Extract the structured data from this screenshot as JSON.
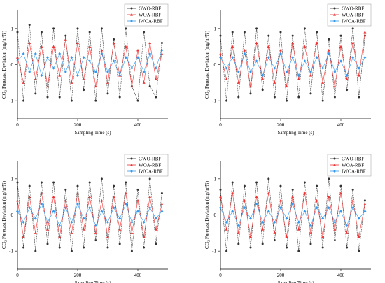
{
  "colors": {
    "GWO-RBF": "#333333",
    "WOA-RBF": "#ee3333",
    "IWOA-RBF": "#3399ee"
  },
  "chart_data": [
    {
      "type": "line",
      "xlabel": "Sampling Time (s)",
      "ylabel": "CO₂ Forecast Deviation (mg/m³N)",
      "xlim": [
        0,
        500
      ],
      "ylim": [
        -1.5,
        1.5
      ],
      "xticks": [
        0,
        200,
        400
      ],
      "yticks": [
        -1,
        0,
        1
      ],
      "legend_position": "top-right",
      "series": [
        {
          "name": "GWO-RBF",
          "x": [
            0,
            20,
            40,
            60,
            80,
            100,
            120,
            140,
            160,
            180,
            200,
            220,
            240,
            260,
            280,
            300,
            320,
            340,
            360,
            380,
            400,
            420,
            440,
            460,
            480
          ],
          "values": [
            0.9,
            -1.0,
            1.1,
            -0.8,
            0.9,
            -0.9,
            1.0,
            -0.9,
            0.8,
            -1.0,
            1.0,
            -0.7,
            0.9,
            -1.0,
            1.0,
            -0.8,
            0.7,
            -0.9,
            1.0,
            -0.6,
            -1.0,
            0.9,
            -0.6,
            -0.9,
            0.6
          ]
        },
        {
          "name": "WOA-RBF",
          "x": [
            0,
            20,
            40,
            60,
            80,
            100,
            120,
            140,
            160,
            180,
            200,
            220,
            240,
            260,
            280,
            300,
            320,
            340,
            360,
            380,
            400,
            420,
            440,
            460,
            480
          ],
          "values": [
            0.2,
            -0.5,
            0.6,
            -0.4,
            0.5,
            -0.6,
            0.5,
            -0.3,
            0.7,
            -0.5,
            0.6,
            -0.4,
            0.5,
            -0.6,
            0.4,
            -0.5,
            0.6,
            -0.3,
            0.5,
            -0.6,
            0.4,
            -0.5,
            0.6,
            -0.4,
            0.3
          ]
        },
        {
          "name": "IWOA-RBF",
          "x": [
            0,
            20,
            40,
            60,
            80,
            100,
            120,
            140,
            160,
            180,
            200,
            220,
            240,
            260,
            280,
            300,
            320,
            340,
            360,
            380,
            400,
            420,
            440,
            460,
            480
          ],
          "values": [
            0.1,
            0.3,
            -0.2,
            0.3,
            -0.3,
            0.2,
            -0.1,
            0.3,
            -0.2,
            0.2,
            -0.3,
            0.2,
            0.1,
            -0.2,
            0.3,
            -0.2,
            0.1,
            -0.3,
            0.2,
            -0.1,
            0.2,
            -0.2,
            0.3,
            -0.1,
            0.4
          ]
        }
      ]
    },
    {
      "type": "line",
      "xlabel": "Sampling Time (s)",
      "ylabel": "CO₂ Forecast Deviation (mg/m³N)",
      "xlim": [
        0,
        500
      ],
      "ylim": [
        -1.5,
        1.5
      ],
      "xticks": [
        0,
        200,
        400
      ],
      "yticks": [
        -1,
        0,
        1
      ],
      "legend_position": "top-right",
      "series": [
        {
          "name": "GWO-RBF",
          "x": [
            0,
            20,
            40,
            60,
            80,
            100,
            120,
            140,
            160,
            180,
            200,
            220,
            240,
            260,
            280,
            300,
            320,
            340,
            360,
            380,
            400,
            420,
            440,
            460,
            480
          ],
          "values": [
            0.8,
            -1.0,
            0.9,
            -0.9,
            0.9,
            -0.8,
            1.0,
            -0.7,
            0.8,
            -0.9,
            0.9,
            -1.0,
            0.8,
            -0.9,
            1.0,
            -0.8,
            0.9,
            -1.0,
            0.7,
            -0.9,
            0.8,
            -0.7,
            1.0,
            -0.9,
            0.8
          ]
        },
        {
          "name": "WOA-RBF",
          "x": [
            0,
            20,
            40,
            60,
            80,
            100,
            120,
            140,
            160,
            180,
            200,
            220,
            240,
            260,
            280,
            300,
            320,
            340,
            360,
            380,
            400,
            420,
            440,
            460,
            480
          ],
          "values": [
            0.3,
            -0.4,
            0.5,
            -0.5,
            0.4,
            -0.6,
            0.6,
            -0.4,
            0.5,
            -0.5,
            0.4,
            -0.6,
            0.6,
            -0.4,
            0.5,
            -0.3,
            0.6,
            -0.5,
            0.4,
            -0.6,
            0.5,
            -0.4,
            0.6,
            -0.3,
            0.9
          ]
        },
        {
          "name": "IWOA-RBF",
          "x": [
            0,
            20,
            40,
            60,
            80,
            100,
            120,
            140,
            160,
            180,
            200,
            220,
            240,
            260,
            280,
            300,
            320,
            340,
            360,
            380,
            400,
            420,
            440,
            460,
            480
          ],
          "values": [
            0.2,
            -0.1,
            0.2,
            -0.2,
            0.3,
            -0.2,
            0.1,
            -0.3,
            0.2,
            -0.1,
            0.3,
            -0.2,
            0.2,
            -0.3,
            0.1,
            -0.2,
            0.2,
            -0.1,
            0.3,
            -0.2,
            0.1,
            -0.3,
            0.2,
            -0.1,
            0.2
          ]
        }
      ]
    },
    {
      "type": "line",
      "xlabel": "Sampling Time (s)",
      "ylabel": "CO₂ Forecast Deviation (mg/m³N)",
      "xlim": [
        0,
        500
      ],
      "ylim": [
        -1.5,
        1.5
      ],
      "xticks": [
        0,
        200,
        400
      ],
      "yticks": [
        -1,
        0,
        1
      ],
      "legend_position": "top-right",
      "series": [
        {
          "name": "GWO-RBF",
          "x": [
            0,
            20,
            40,
            60,
            80,
            100,
            120,
            140,
            160,
            180,
            200,
            220,
            240,
            260,
            280,
            300,
            320,
            340,
            360,
            380,
            400,
            420,
            440,
            460,
            480
          ],
          "values": [
            0.9,
            -0.9,
            0.8,
            -1.0,
            0.9,
            -0.8,
            0.9,
            -0.9,
            0.7,
            -1.0,
            0.8,
            -0.9,
            0.9,
            -0.7,
            1.0,
            -0.9,
            0.8,
            -0.8,
            0.9,
            -1.0,
            0.7,
            -0.9,
            1.0,
            -0.8,
            0.6
          ]
        },
        {
          "name": "WOA-RBF",
          "x": [
            0,
            20,
            40,
            60,
            80,
            100,
            120,
            140,
            160,
            180,
            200,
            220,
            240,
            260,
            280,
            300,
            320,
            340,
            360,
            380,
            400,
            420,
            440,
            460,
            480
          ],
          "values": [
            0.4,
            -0.6,
            0.5,
            -0.5,
            0.6,
            -0.4,
            0.5,
            -0.6,
            0.4,
            -0.5,
            0.6,
            -0.4,
            0.5,
            -0.5,
            0.4,
            -0.6,
            0.5,
            -0.4,
            0.6,
            -0.5,
            0.4,
            -0.6,
            0.5,
            -0.4,
            0.3
          ]
        },
        {
          "name": "IWOA-RBF",
          "x": [
            0,
            20,
            40,
            60,
            80,
            100,
            120,
            140,
            160,
            180,
            200,
            220,
            240,
            260,
            280,
            300,
            320,
            340,
            360,
            380,
            400,
            420,
            440,
            460,
            480
          ],
          "values": [
            0.1,
            -0.2,
            0.2,
            -0.1,
            0.3,
            -0.2,
            0.1,
            -0.3,
            0.2,
            -0.2,
            0.3,
            -0.1,
            0.2,
            -0.3,
            0.1,
            -0.2,
            0.2,
            -0.1,
            0.3,
            -0.2,
            0.1,
            -0.2,
            0.2,
            -0.1,
            0.1
          ]
        }
      ]
    },
    {
      "type": "line",
      "xlabel": "Sampling Time (s)",
      "ylabel": "CO₂ Forecast Deviation (mg/m³N)",
      "xlim": [
        0,
        500
      ],
      "ylim": [
        -1.5,
        1.5
      ],
      "xticks": [
        0,
        200,
        400
      ],
      "yticks": [
        -1,
        0,
        1
      ],
      "legend_position": "top-right",
      "series": [
        {
          "name": "GWO-RBF",
          "x": [
            0,
            20,
            40,
            60,
            80,
            100,
            120,
            140,
            160,
            180,
            200,
            220,
            240,
            260,
            280,
            300,
            320,
            340,
            360,
            380,
            400,
            420,
            440,
            460,
            480
          ],
          "values": [
            0.7,
            -1.0,
            0.9,
            -0.8,
            0.8,
            -0.9,
            0.9,
            -0.8,
            1.0,
            -0.7,
            0.8,
            -0.9,
            0.7,
            -1.0,
            0.9,
            -0.8,
            0.8,
            -0.9,
            1.0,
            -0.7,
            0.8,
            -0.9,
            0.7,
            -1.0,
            0.4
          ]
        },
        {
          "name": "WOA-RBF",
          "x": [
            0,
            20,
            40,
            60,
            80,
            100,
            120,
            140,
            160,
            180,
            200,
            220,
            240,
            260,
            280,
            300,
            320,
            340,
            360,
            380,
            400,
            420,
            440,
            460,
            480
          ],
          "values": [
            0.5,
            -0.4,
            0.6,
            -0.5,
            0.4,
            -0.6,
            0.5,
            -0.4,
            0.6,
            -0.5,
            0.4,
            -0.6,
            0.5,
            -0.4,
            0.6,
            -0.5,
            0.4,
            -0.6,
            0.5,
            -0.4,
            0.6,
            -0.5,
            0.4,
            -0.6,
            0.3
          ]
        },
        {
          "name": "IWOA-RBF",
          "x": [
            0,
            20,
            40,
            60,
            80,
            100,
            120,
            140,
            160,
            180,
            200,
            220,
            240,
            260,
            280,
            300,
            320,
            340,
            360,
            380,
            400,
            420,
            440,
            460,
            480
          ],
          "values": [
            0.2,
            -0.2,
            0.1,
            -0.3,
            0.2,
            -0.1,
            0.3,
            -0.2,
            0.1,
            -0.2,
            0.2,
            -0.1,
            0.3,
            -0.2,
            0.1,
            -0.3,
            0.2,
            -0.1,
            0.2,
            -0.2,
            0.1,
            -0.3,
            0.2,
            -0.1,
            0.1
          ]
        }
      ]
    }
  ]
}
